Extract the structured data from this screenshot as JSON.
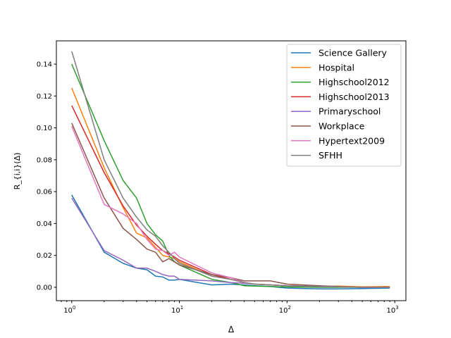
{
  "chart_data": {
    "type": "line",
    "title": "",
    "xlabel": "Δ",
    "ylabel": "R_{i,i}(Δ)",
    "xscale": "log",
    "xlim": [
      0.72,
      1270
    ],
    "ylim": [
      -0.0084,
      0.1546
    ],
    "xticks": [
      {
        "v": 1,
        "label": "10",
        "exp": "0"
      },
      {
        "v": 10,
        "label": "10",
        "exp": "1"
      },
      {
        "v": 100,
        "label": "10",
        "exp": "2"
      },
      {
        "v": 1000,
        "label": "10",
        "exp": "3"
      }
    ],
    "yticks": [
      0,
      0.02,
      0.04,
      0.06,
      0.08,
      0.1,
      0.12,
      0.14
    ],
    "ytick_labels": [
      "0.00",
      "0.02",
      "0.04",
      "0.06",
      "0.08",
      "0.10",
      "0.12",
      "0.14"
    ],
    "legend_position": "top-right",
    "grid": false,
    "x": [
      1,
      2,
      3,
      4,
      5,
      6,
      7,
      8,
      9,
      10,
      20,
      30,
      40,
      50,
      70,
      100,
      200,
      300,
      500,
      900
    ],
    "series": [
      {
        "name": "Science Gallery",
        "color": "#1f77b4",
        "values": [
          0.058,
          0.022,
          0.015,
          0.012,
          0.011,
          0.007,
          0.0065,
          0.0045,
          0.0045,
          0.005,
          0.0015,
          0.002,
          0.0015,
          0.001,
          0.0005,
          -0.0005,
          -0.001,
          -0.001,
          -0.0008,
          -0.0005
        ]
      },
      {
        "name": "Hospital",
        "color": "#ff7f0e",
        "values": [
          0.125,
          0.075,
          0.05,
          0.034,
          0.031,
          0.025,
          0.02,
          0.019,
          0.018,
          0.016,
          0.007,
          0.005,
          0.003,
          0.002,
          0.0015,
          0.001,
          0.0005,
          0.0008,
          0.0003,
          0.0005
        ]
      },
      {
        "name": "Highschool2012",
        "color": "#2ca02c",
        "values": [
          0.14,
          0.092,
          0.067,
          0.056,
          0.04,
          0.033,
          0.029,
          0.02,
          0.016,
          0.014,
          0.005,
          0.003,
          0.001,
          0.0008,
          0.0005,
          0.0002,
          0,
          0,
          0,
          0
        ]
      },
      {
        "name": "Highschool2013",
        "color": "#d62728",
        "values": [
          0.114,
          0.072,
          0.051,
          0.039,
          0.032,
          0.027,
          0.023,
          0.021,
          0.019,
          0.017,
          0.008,
          0.005,
          0.003,
          0.002,
          0.0015,
          0.001,
          0.0005,
          0.0003,
          0,
          0
        ]
      },
      {
        "name": "Primaryschool",
        "color": "#9467bd",
        "values": [
          0.056,
          0.023,
          0.017,
          0.012,
          0.012,
          0.01,
          0.008,
          0.007,
          0.007,
          0.005,
          0.004,
          0.003,
          0.0025,
          0.002,
          0.0015,
          0.001,
          0.0005,
          0.0003,
          0,
          0
        ]
      },
      {
        "name": "Workplace",
        "color": "#8c564b",
        "values": [
          0.103,
          0.056,
          0.037,
          0.03,
          0.024,
          0.022,
          0.016,
          0.018,
          0.016,
          0.014,
          0.008,
          0.006,
          0.004,
          0.004,
          0.004,
          0.002,
          0.001,
          0.0005,
          0,
          0
        ]
      },
      {
        "name": "Hypertext2009",
        "color": "#e377c2",
        "values": [
          0.101,
          0.052,
          0.046,
          0.04,
          0.03,
          0.024,
          0.023,
          0.02,
          0.022,
          0.019,
          0.009,
          0.006,
          0.003,
          0.002,
          0.0015,
          0.001,
          0.0005,
          0.0003,
          0,
          0
        ]
      },
      {
        "name": "SFHH",
        "color": "#7f7f7f",
        "values": [
          0.148,
          0.08,
          0.056,
          0.044,
          0.036,
          0.032,
          0.026,
          0.022,
          0.018,
          0.015,
          0.007,
          0.005,
          0.003,
          0.002,
          0.0015,
          0.001,
          0.0005,
          0.0003,
          0,
          0
        ]
      }
    ]
  }
}
